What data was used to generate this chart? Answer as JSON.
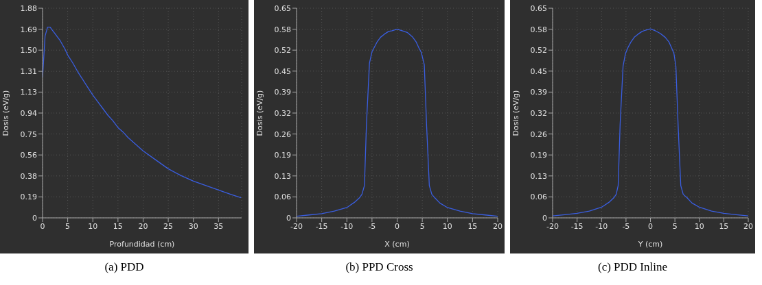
{
  "chart_data": [
    {
      "type": "line",
      "title": "(a) PDD",
      "xlabel": "Profundidad (cm)",
      "ylabel": "Dosis (eV/g)",
      "grid": true,
      "xlim": [
        0,
        39.6
      ],
      "xticks": [
        0,
        5,
        10,
        15,
        20,
        25,
        30,
        35
      ],
      "ylim": [
        0,
        1.88
      ],
      "yticks": [
        0,
        {
          "value": 0.188,
          "label": "0.19"
        },
        {
          "value": 0.376,
          "label": "0.38"
        },
        {
          "value": 0.564,
          "label": "0.56"
        },
        {
          "value": 0.752,
          "label": "0.75"
        },
        {
          "value": 0.94,
          "label": "0.94"
        },
        {
          "value": 1.128,
          "label": "1.13"
        },
        {
          "value": 1.314,
          "label": "1.31"
        },
        {
          "value": 1.504,
          "label": "1.50"
        },
        {
          "value": 1.692,
          "label": "1.69"
        },
        1.88
      ],
      "series": [
        {
          "color": "#3a5ee0",
          "x": [
            0,
            0.5,
            1,
            1.5,
            2,
            2.5,
            3,
            3.5,
            4,
            4.5,
            5,
            6,
            7,
            8,
            9,
            10,
            11,
            12,
            13,
            14,
            15,
            16,
            17,
            18,
            19,
            20,
            22.5,
            25,
            27.5,
            30,
            32.5,
            35,
            37.5,
            39.5
          ],
          "values": [
            1.26,
            1.63,
            1.71,
            1.71,
            1.68,
            1.65,
            1.62,
            1.59,
            1.55,
            1.51,
            1.46,
            1.39,
            1.31,
            1.24,
            1.17,
            1.1,
            1.04,
            0.98,
            0.92,
            0.87,
            0.81,
            0.77,
            0.72,
            0.68,
            0.64,
            0.6,
            0.52,
            0.44,
            0.38,
            0.33,
            0.29,
            0.25,
            0.21,
            0.18
          ]
        }
      ]
    },
    {
      "type": "line",
      "title": "(b) PPD Cross",
      "xlabel": "X (cm)",
      "ylabel": "Dosis (eV/g)",
      "grid": true,
      "xlim": [
        -20,
        20
      ],
      "xticks": [
        -20,
        -15,
        -10,
        -5,
        0,
        5,
        10,
        15,
        20
      ],
      "ylim": [
        0,
        0.65
      ],
      "yticks": [
        0,
        {
          "value": 0.065,
          "label": "0.06"
        },
        {
          "value": 0.13,
          "label": "0.13"
        },
        {
          "value": 0.195,
          "label": "0.19"
        },
        {
          "value": 0.26,
          "label": "0.26"
        },
        {
          "value": 0.325,
          "label": "0.32"
        },
        {
          "value": 0.39,
          "label": "0.39"
        },
        {
          "value": 0.455,
          "label": "0.45"
        },
        {
          "value": 0.52,
          "label": "0.52"
        },
        {
          "value": 0.585,
          "label": "0.58"
        },
        0.65
      ],
      "series": [
        {
          "color": "#3a5ee0",
          "x": [
            -20,
            -17.5,
            -15,
            -12.5,
            -10,
            -8.5,
            -7.5,
            -7,
            -6.5,
            -6.1,
            -5.5,
            -5,
            -4.5,
            -4,
            -3.3,
            -2.5,
            -1.7,
            -1,
            0,
            1,
            2,
            3,
            3.8,
            4.3,
            4.8,
            5.4,
            5.85,
            6.4,
            6.9,
            7.5,
            8.5,
            10,
            12.5,
            15,
            17.5,
            20
          ],
          "values": [
            0.005,
            0.009,
            0.013,
            0.021,
            0.032,
            0.048,
            0.062,
            0.073,
            0.1,
            0.29,
            0.48,
            0.515,
            0.53,
            0.545,
            0.56,
            0.57,
            0.578,
            0.58,
            0.585,
            0.58,
            0.575,
            0.562,
            0.545,
            0.528,
            0.513,
            0.475,
            0.29,
            0.1,
            0.073,
            0.062,
            0.046,
            0.032,
            0.021,
            0.013,
            0.009,
            0.005
          ]
        }
      ]
    },
    {
      "type": "line",
      "title": "(c) PDD Inline",
      "xlabel": "Y (cm)",
      "ylabel": "Dosis (eV/g)",
      "grid": true,
      "xlim": [
        -20,
        20
      ],
      "xticks": [
        -20,
        -15,
        -10,
        -5,
        0,
        5,
        10,
        15,
        20
      ],
      "ylim": [
        0,
        0.65
      ],
      "yticks": [
        0,
        {
          "value": 0.065,
          "label": "0.06"
        },
        {
          "value": 0.13,
          "label": "0.13"
        },
        {
          "value": 0.195,
          "label": "0.19"
        },
        {
          "value": 0.26,
          "label": "0.26"
        },
        {
          "value": 0.325,
          "label": "0.32"
        },
        {
          "value": 0.39,
          "label": "0.39"
        },
        {
          "value": 0.455,
          "label": "0.45"
        },
        {
          "value": 0.52,
          "label": "0.52"
        },
        {
          "value": 0.585,
          "label": "0.58"
        },
        0.65
      ],
      "series": [
        {
          "color": "#3a5ee0",
          "x": [
            -20,
            -17.5,
            -15,
            -12.5,
            -10,
            -8.5,
            -7.5,
            -7,
            -6.6,
            -6.2,
            -5.6,
            -5.1,
            -4.6,
            -4,
            -3.3,
            -2.5,
            -1.7,
            -1,
            0,
            1,
            2,
            3,
            3.8,
            4.3,
            4.8,
            5.2,
            5.65,
            6.2,
            6.7,
            7.5,
            8.5,
            10,
            12.5,
            15,
            17.5,
            20
          ],
          "values": [
            0.006,
            0.01,
            0.014,
            0.021,
            0.033,
            0.048,
            0.062,
            0.073,
            0.1,
            0.29,
            0.47,
            0.51,
            0.528,
            0.545,
            0.56,
            0.57,
            0.578,
            0.582,
            0.586,
            0.58,
            0.572,
            0.56,
            0.545,
            0.528,
            0.51,
            0.47,
            0.29,
            0.1,
            0.073,
            0.062,
            0.046,
            0.033,
            0.021,
            0.014,
            0.01,
            0.006
          ]
        }
      ]
    }
  ]
}
